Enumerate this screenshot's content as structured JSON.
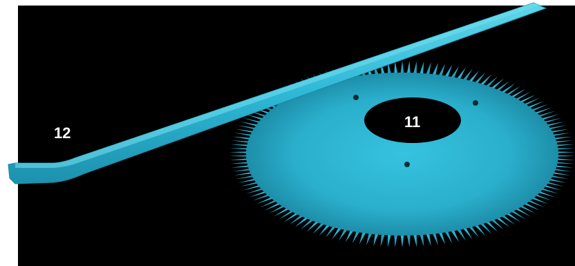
{
  "labels": {
    "part_12": "12",
    "part_11": "11"
  },
  "colors": {
    "background": "#000000",
    "part_color": "#2bb7d4",
    "part_shadow": "#1a8fa9",
    "label_text": "#ffffff"
  }
}
